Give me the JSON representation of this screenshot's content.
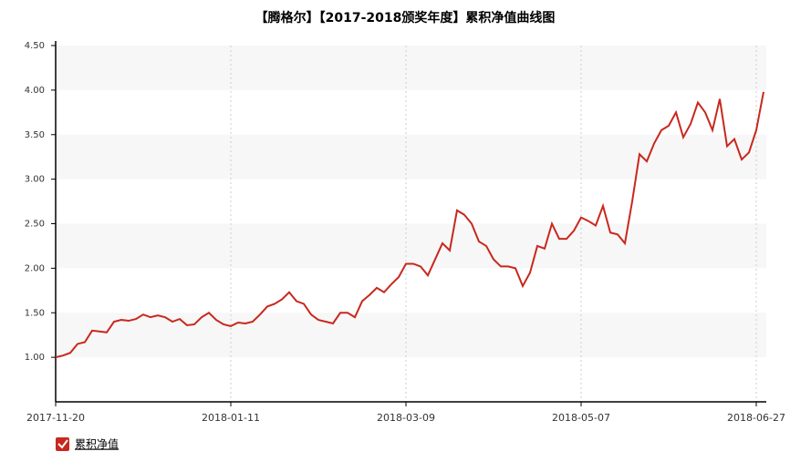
{
  "chart_data": {
    "type": "line",
    "title": "【腾格尔】【2017-2018颁奖年度】累积净值曲线图",
    "categories": [
      "2017-11-20",
      null,
      null,
      null,
      null,
      null,
      null,
      null,
      null,
      null,
      null,
      null,
      null,
      null,
      null,
      null,
      null,
      null,
      null,
      null,
      null,
      null,
      null,
      null,
      "2018-01-11",
      null,
      null,
      null,
      null,
      null,
      null,
      null,
      null,
      null,
      null,
      null,
      null,
      null,
      null,
      null,
      null,
      null,
      null,
      null,
      null,
      null,
      null,
      null,
      "2018-03-09",
      null,
      null,
      null,
      null,
      null,
      null,
      null,
      null,
      null,
      null,
      null,
      null,
      null,
      null,
      null,
      null,
      null,
      null,
      null,
      null,
      null,
      null,
      null,
      "2018-05-07",
      null,
      null,
      null,
      null,
      null,
      null,
      null,
      null,
      null,
      null,
      null,
      null,
      null,
      null,
      null,
      null,
      null,
      null,
      null,
      null,
      null,
      null,
      null,
      "2018-06-27",
      null
    ],
    "series": [
      {
        "name": "累积净值",
        "color": "#c8281e",
        "values": [
          1.0,
          1.02,
          1.05,
          1.15,
          1.17,
          1.3,
          1.29,
          1.28,
          1.4,
          1.42,
          1.41,
          1.43,
          1.48,
          1.45,
          1.47,
          1.45,
          1.4,
          1.43,
          1.36,
          1.37,
          1.45,
          1.5,
          1.42,
          1.37,
          1.35,
          1.39,
          1.38,
          1.4,
          1.48,
          1.57,
          1.6,
          1.65,
          1.73,
          1.63,
          1.6,
          1.48,
          1.42,
          1.4,
          1.38,
          1.5,
          1.5,
          1.45,
          1.63,
          1.7,
          1.78,
          1.73,
          1.82,
          1.9,
          2.05,
          2.05,
          2.02,
          1.92,
          2.1,
          2.28,
          2.2,
          2.65,
          2.6,
          2.5,
          2.3,
          2.25,
          2.1,
          2.02,
          2.02,
          2.0,
          1.8,
          1.95,
          2.25,
          2.22,
          2.5,
          2.33,
          2.33,
          2.42,
          2.57,
          2.53,
          2.48,
          2.7,
          2.4,
          2.38,
          2.28,
          2.75,
          3.28,
          3.2,
          3.4,
          3.55,
          3.6,
          3.75,
          3.47,
          3.62,
          3.86,
          3.75,
          3.55,
          3.9,
          3.37,
          3.45,
          3.22,
          3.3,
          3.55,
          3.98
        ]
      }
    ],
    "ylim": [
      0.5,
      4.5
    ],
    "yticks": [
      {
        "value": 1,
        "label": "1.00"
      },
      {
        "value": 1.5,
        "label": "1.50"
      },
      {
        "value": 2,
        "label": "2.00"
      },
      {
        "value": 2.5,
        "label": "2.50"
      },
      {
        "value": 3,
        "label": "3.00"
      },
      {
        "value": 3.5,
        "label": "3.50"
      },
      {
        "value": 4,
        "label": "4.00"
      },
      {
        "value": 4.5,
        "label": "4.50"
      }
    ],
    "grid": true
  }
}
